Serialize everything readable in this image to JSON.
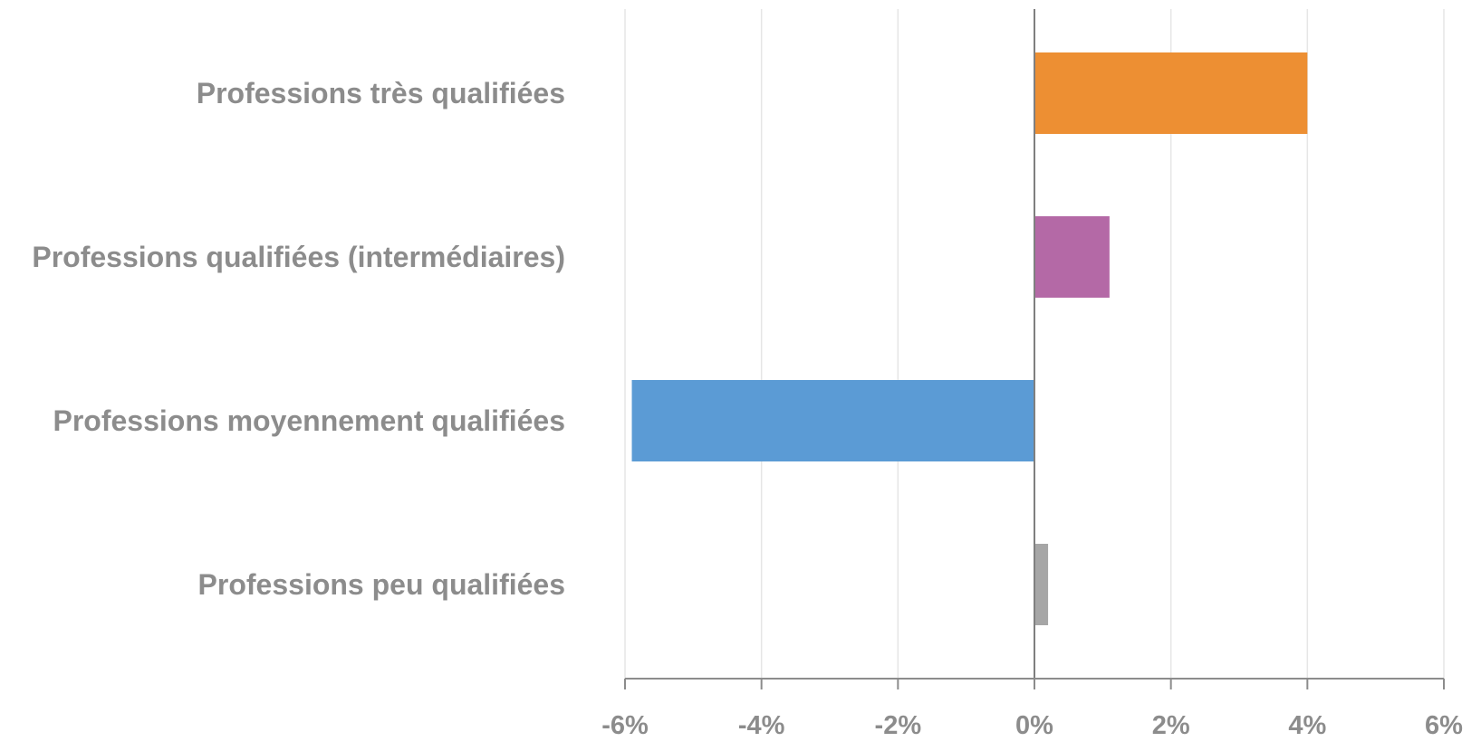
{
  "chart_data": {
    "type": "bar",
    "orientation": "horizontal",
    "categories": [
      "Professions très qualifiées",
      "Professions qualifiées (intermédiaires)",
      "Professions moyennement qualifiées",
      "Professions peu qualifiées"
    ],
    "values": [
      4.0,
      1.1,
      -5.9,
      0.2
    ],
    "colors": [
      "#ed8f33",
      "#b469a6",
      "#5b9bd5",
      "#a6a6a6"
    ],
    "xlim": [
      -6,
      6
    ],
    "xticks": [
      -6,
      -4,
      -2,
      0,
      2,
      4,
      6
    ],
    "xtick_labels": [
      "-6%",
      "-4%",
      "-2%",
      "0%",
      "2%",
      "4%",
      "6%"
    ],
    "title": "",
    "xlabel": "",
    "ylabel": "",
    "grid": "vertical",
    "legend": "none"
  }
}
